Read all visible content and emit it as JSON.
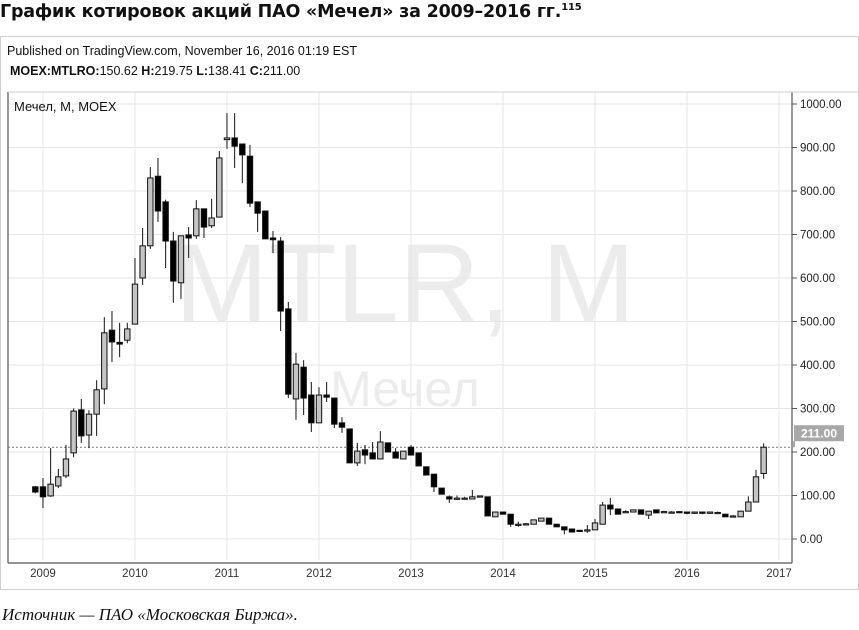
{
  "title": "График котировок акций ПАО «Мечел» за 2009–2016 гг.",
  "title_footnote": "115",
  "published": "Published on TradingView.com, November 16, 2016 01:19 EST",
  "ohlc_header": {
    "symbol": "MOEX:MTLRO:",
    "open": "150.62",
    "high_label": "H:",
    "high": "219.75",
    "low_label": "L:",
    "low": "138.41",
    "close_label": "C:",
    "close": "211.00"
  },
  "caption": "Источник — ПАО «Московская Биржа».",
  "colors": {
    "up_fill": "#c4c4c4",
    "down_fill": "#000000",
    "grid": "#e6e6e6",
    "price_tag": "#a8a8a8"
  },
  "chart_data": {
    "type": "candlestick",
    "legend": "Мечел, M, MOEX",
    "watermark": [
      "MTLR, M",
      "Мечел"
    ],
    "last_price_label": "211.00",
    "last_price": 211.0,
    "ylim": [
      -50,
      1030
    ],
    "y_ticks": [
      "0.00",
      "100.00",
      "200.00",
      "300.00",
      "400.00",
      "500.00",
      "600.00",
      "700.00",
      "800.00",
      "900.00",
      "1000.00"
    ],
    "y_tick_values": [
      0,
      100,
      200,
      300,
      400,
      500,
      600,
      700,
      800,
      900,
      1000
    ],
    "x_ticks": [
      "2009",
      "2010",
      "2011",
      "2012",
      "2013",
      "2014",
      "2015",
      "2016",
      "2017"
    ],
    "grid": true,
    "start": "2008-12",
    "interval": "month",
    "columns": [
      "open",
      "high",
      "low",
      "close"
    ],
    "candles": [
      [
        120,
        122,
        105,
        108
      ],
      [
        120,
        140,
        71,
        97
      ],
      [
        99,
        209,
        97,
        126
      ],
      [
        122,
        161,
        117,
        143
      ],
      [
        145,
        216,
        140,
        184
      ],
      [
        198,
        300,
        188,
        294
      ],
      [
        297,
        322,
        221,
        237
      ],
      [
        239,
        296,
        209,
        287
      ],
      [
        287,
        365,
        237,
        343
      ],
      [
        345,
        510,
        310,
        474
      ],
      [
        480,
        524,
        407,
        453
      ],
      [
        452,
        497,
        418,
        448
      ],
      [
        457,
        497,
        450,
        483
      ],
      [
        494,
        646,
        494,
        586
      ],
      [
        600,
        715,
        584,
        674
      ],
      [
        674,
        855,
        667,
        830
      ],
      [
        834,
        876,
        729,
        754
      ],
      [
        775,
        780,
        623,
        685
      ],
      [
        685,
        706,
        543,
        593
      ],
      [
        589,
        697,
        552,
        697
      ],
      [
        699,
        717,
        646,
        692
      ],
      [
        697,
        779,
        690,
        759
      ],
      [
        759,
        759,
        692,
        717
      ],
      [
        720,
        782,
        715,
        738
      ],
      [
        740,
        892,
        740,
        876
      ],
      [
        918,
        979,
        897,
        922
      ],
      [
        922,
        979,
        853,
        903
      ],
      [
        908,
        908,
        818,
        883
      ],
      [
        880,
        906,
        763,
        772
      ],
      [
        775,
        775,
        706,
        749
      ],
      [
        754,
        754,
        690,
        690
      ],
      [
        692,
        708,
        657,
        688
      ],
      [
        685,
        694,
        478,
        524
      ],
      [
        529,
        545,
        324,
        333
      ],
      [
        322,
        428,
        274,
        402
      ],
      [
        395,
        411,
        285,
        324
      ],
      [
        331,
        361,
        246,
        267
      ],
      [
        267,
        349,
        267,
        331
      ],
      [
        331,
        361,
        315,
        326
      ],
      [
        324,
        324,
        255,
        264
      ],
      [
        267,
        280,
        244,
        257
      ],
      [
        253,
        253,
        175,
        175
      ],
      [
        175,
        221,
        168,
        202
      ],
      [
        205,
        216,
        172,
        193
      ],
      [
        198,
        223,
        184,
        184
      ],
      [
        184,
        248,
        184,
        223
      ],
      [
        221,
        221,
        200,
        200
      ],
      [
        200,
        209,
        186,
        186
      ],
      [
        184,
        202,
        184,
        202
      ],
      [
        211,
        216,
        193,
        193
      ],
      [
        198,
        198,
        168,
        168
      ],
      [
        166,
        166,
        147,
        147
      ],
      [
        149,
        149,
        108,
        120
      ],
      [
        117,
        117,
        103,
        103
      ],
      [
        97,
        100,
        83,
        92
      ],
      [
        94,
        100,
        90,
        94
      ],
      [
        94,
        97,
        92,
        94
      ],
      [
        92,
        113,
        92,
        97
      ],
      [
        99,
        100,
        97,
        99
      ],
      [
        97,
        97,
        53,
        53
      ],
      [
        51,
        62,
        51,
        62
      ],
      [
        62,
        62,
        57,
        57
      ],
      [
        57,
        57,
        28,
        34
      ],
      [
        34,
        40,
        28,
        34
      ],
      [
        34,
        37,
        32,
        35
      ],
      [
        34,
        44,
        34,
        44
      ],
      [
        41,
        48,
        41,
        48
      ],
      [
        48,
        48,
        34,
        34
      ],
      [
        34,
        34,
        28,
        28
      ],
      [
        28,
        28,
        11,
        21
      ],
      [
        23,
        23,
        16,
        16
      ],
      [
        20,
        20,
        17,
        18
      ],
      [
        21,
        32,
        14,
        21
      ],
      [
        21,
        46,
        21,
        37
      ],
      [
        34,
        85,
        34,
        78
      ],
      [
        78,
        94,
        55,
        69
      ],
      [
        69,
        69,
        57,
        57
      ],
      [
        63,
        66,
        60,
        63
      ],
      [
        62,
        67,
        62,
        67
      ],
      [
        67,
        67,
        57,
        57
      ],
      [
        55,
        64,
        46,
        64
      ],
      [
        67,
        67,
        60,
        60
      ],
      [
        63,
        65,
        61,
        63
      ],
      [
        62,
        64,
        60,
        62
      ],
      [
        63,
        63,
        61,
        62
      ],
      [
        62,
        63,
        57,
        59
      ],
      [
        59,
        63,
        58,
        62
      ],
      [
        62,
        63,
        57,
        59
      ],
      [
        59,
        63,
        58,
        62
      ],
      [
        61,
        63,
        60,
        61
      ],
      [
        57,
        57,
        51,
        51
      ],
      [
        53,
        55,
        52,
        53
      ],
      [
        51,
        64,
        51,
        64
      ],
      [
        64,
        98,
        64,
        85
      ],
      [
        85,
        159,
        85,
        143
      ],
      [
        150.62,
        219.75,
        138.41,
        211.0
      ]
    ]
  }
}
